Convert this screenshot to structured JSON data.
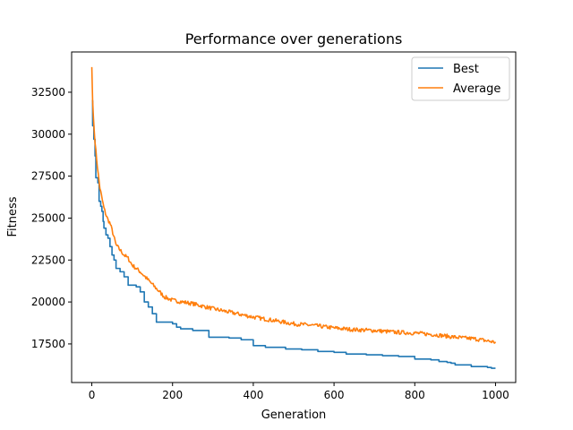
{
  "chart_data": {
    "type": "line",
    "title": "Performance over generations",
    "xlabel": "Generation",
    "ylabel": "Fitness",
    "xlim": [
      -50,
      1050
    ],
    "ylim": [
      15200,
      34900
    ],
    "xticks": [
      0,
      200,
      400,
      600,
      800,
      1000
    ],
    "xtick_labels": [
      "0",
      "200",
      "400",
      "600",
      "800",
      "1000"
    ],
    "yticks": [
      17500,
      20000,
      22500,
      25000,
      27500,
      30000,
      32500
    ],
    "ytick_labels": [
      "17500",
      "20000",
      "22500",
      "25000",
      "27500",
      "30000",
      "32500"
    ],
    "grid": false,
    "legend_position": "top-right",
    "series": [
      {
        "name": "Best",
        "color": "#1f77b4",
        "step": true,
        "points": [
          [
            0,
            32000
          ],
          [
            2,
            30500
          ],
          [
            5,
            29700
          ],
          [
            8,
            28700
          ],
          [
            10,
            27400
          ],
          [
            15,
            27100
          ],
          [
            18,
            26000
          ],
          [
            22,
            25700
          ],
          [
            25,
            25400
          ],
          [
            28,
            24800
          ],
          [
            30,
            24400
          ],
          [
            35,
            24000
          ],
          [
            40,
            23800
          ],
          [
            45,
            23300
          ],
          [
            50,
            22800
          ],
          [
            55,
            22500
          ],
          [
            60,
            22000
          ],
          [
            70,
            21800
          ],
          [
            80,
            21500
          ],
          [
            90,
            21000
          ],
          [
            110,
            20900
          ],
          [
            120,
            20600
          ],
          [
            130,
            20000
          ],
          [
            140,
            19700
          ],
          [
            150,
            19300
          ],
          [
            160,
            18800
          ],
          [
            200,
            18700
          ],
          [
            210,
            18500
          ],
          [
            220,
            18400
          ],
          [
            250,
            18300
          ],
          [
            290,
            17900
          ],
          [
            340,
            17850
          ],
          [
            370,
            17750
          ],
          [
            400,
            17400
          ],
          [
            430,
            17300
          ],
          [
            480,
            17200
          ],
          [
            520,
            17150
          ],
          [
            560,
            17050
          ],
          [
            600,
            17000
          ],
          [
            630,
            16900
          ],
          [
            680,
            16850
          ],
          [
            720,
            16800
          ],
          [
            760,
            16750
          ],
          [
            800,
            16600
          ],
          [
            840,
            16550
          ],
          [
            860,
            16450
          ],
          [
            880,
            16400
          ],
          [
            890,
            16350
          ],
          [
            900,
            16250
          ],
          [
            940,
            16150
          ],
          [
            980,
            16100
          ],
          [
            990,
            16050
          ],
          [
            1000,
            16050
          ]
        ]
      },
      {
        "name": "Average",
        "color": "#ff7f0e",
        "step": false,
        "noise": 120,
        "points": [
          [
            0,
            34000
          ],
          [
            2,
            32000
          ],
          [
            5,
            30500
          ],
          [
            10,
            29000
          ],
          [
            15,
            27800
          ],
          [
            20,
            26800
          ],
          [
            25,
            26200
          ],
          [
            30,
            25600
          ],
          [
            35,
            25200
          ],
          [
            40,
            24900
          ],
          [
            45,
            24700
          ],
          [
            50,
            24300
          ],
          [
            60,
            23400
          ],
          [
            70,
            23100
          ],
          [
            80,
            22800
          ],
          [
            90,
            22600
          ],
          [
            100,
            22200
          ],
          [
            120,
            21800
          ],
          [
            140,
            21300
          ],
          [
            160,
            20800
          ],
          [
            180,
            20300
          ],
          [
            200,
            20100
          ],
          [
            250,
            19900
          ],
          [
            300,
            19600
          ],
          [
            350,
            19350
          ],
          [
            400,
            19100
          ],
          [
            450,
            18900
          ],
          [
            500,
            18700
          ],
          [
            550,
            18600
          ],
          [
            600,
            18450
          ],
          [
            650,
            18350
          ],
          [
            700,
            18300
          ],
          [
            750,
            18200
          ],
          [
            800,
            18150
          ],
          [
            850,
            18050
          ],
          [
            900,
            17900
          ],
          [
            950,
            17800
          ],
          [
            1000,
            17600
          ]
        ]
      }
    ]
  }
}
